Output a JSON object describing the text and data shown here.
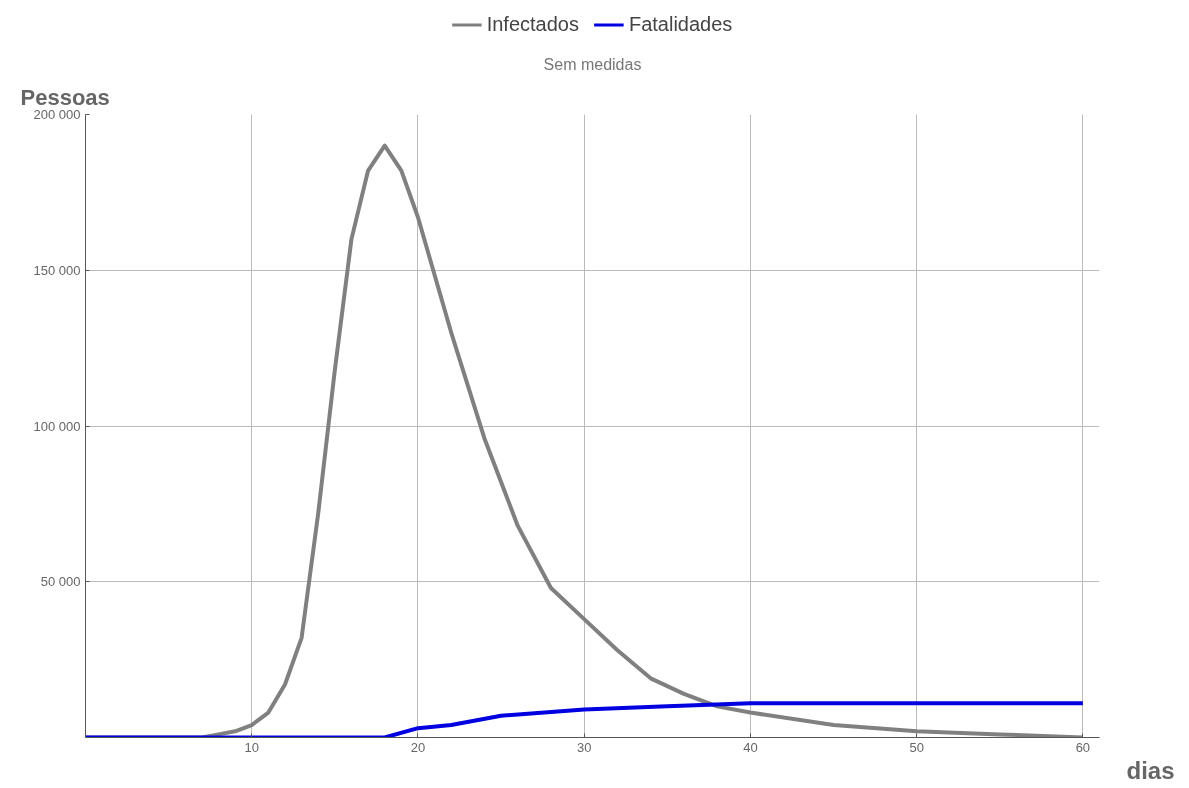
{
  "chart_data": {
    "type": "line",
    "title": "Sem medidas",
    "xlabel": "dias",
    "ylabel": "Pessoas",
    "xlim": [
      0,
      61
    ],
    "ylim": [
      0,
      200000
    ],
    "xticks": [
      10,
      20,
      30,
      40,
      50,
      60
    ],
    "yticks": [
      {
        "value": 50000,
        "label": "50 000"
      },
      {
        "value": 100000,
        "label": "100 000"
      },
      {
        "value": 150000,
        "label": "150 000"
      },
      {
        "value": 200000,
        "label": "200 000"
      }
    ],
    "grid": true,
    "legend": "top",
    "line_style": "solid",
    "series": [
      {
        "name": "Infectados",
        "color": "#808080",
        "x": [
          0,
          5,
          7,
          8,
          9,
          10,
          11,
          12,
          13,
          14,
          15,
          16,
          17,
          18,
          19,
          20,
          22,
          24,
          26,
          28,
          30,
          32,
          34,
          36,
          38,
          40,
          45,
          50,
          55,
          60
        ],
        "values": [
          0,
          0,
          0,
          1000,
          2000,
          4000,
          8000,
          17000,
          32000,
          72000,
          118000,
          160000,
          182000,
          190000,
          182000,
          167000,
          130000,
          96000,
          68000,
          48000,
          38000,
          28000,
          19000,
          14000,
          10000,
          8000,
          4000,
          2000,
          1000,
          0
        ]
      },
      {
        "name": "Fatalidades",
        "color": "#0000e0",
        "x": [
          0,
          18,
          20,
          22,
          25,
          30,
          35,
          40,
          50,
          60
        ],
        "values": [
          0,
          0,
          3000,
          4000,
          7000,
          9000,
          10000,
          11000,
          11000,
          11000
        ]
      }
    ]
  }
}
